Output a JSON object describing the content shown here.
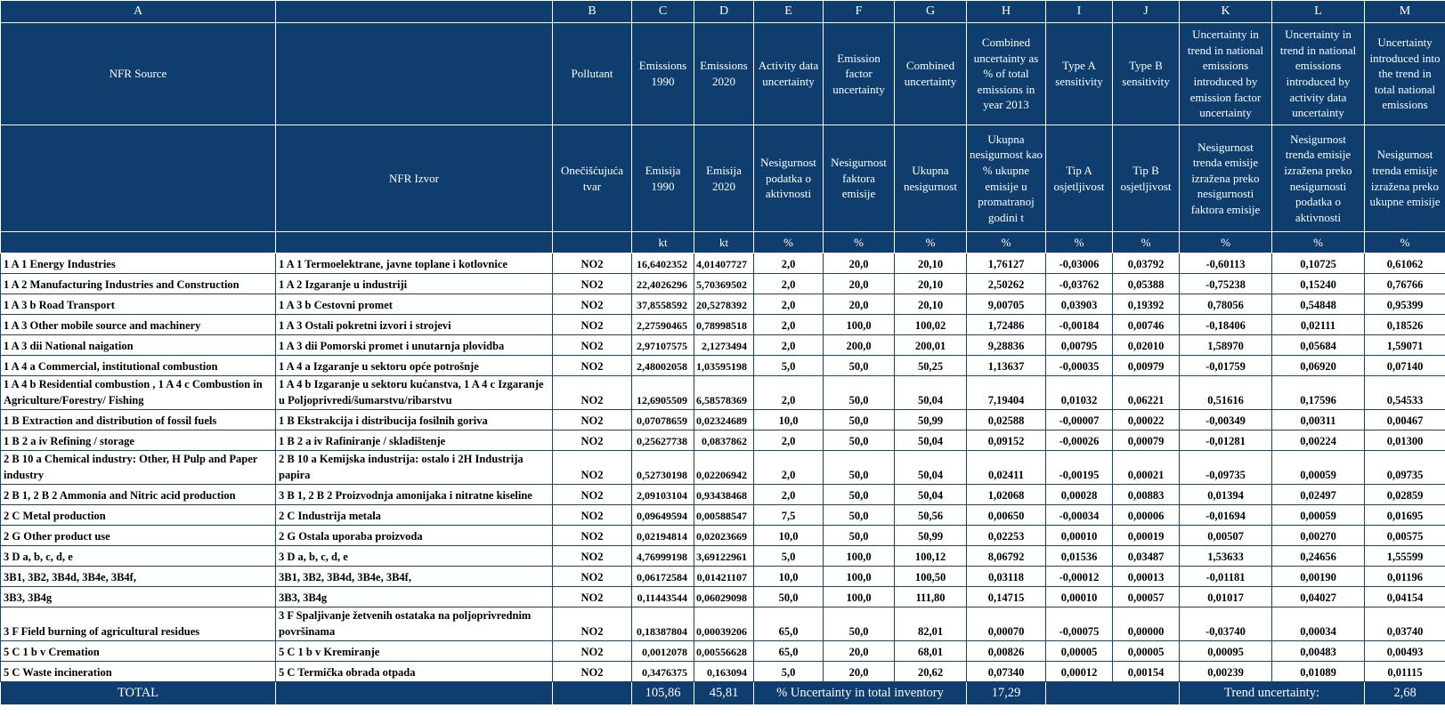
{
  "table": {
    "column_letters": [
      "A",
      "",
      "B",
      "C",
      "D",
      "E",
      "F",
      "G",
      "H",
      "I",
      "J",
      "K",
      "L",
      "M"
    ],
    "headers_en": [
      "NFR Source",
      "",
      "Pollutant",
      "Emissions 1990",
      "Emissions 2020",
      "Activity data uncertainty",
      "Emission factor uncertainty",
      "Combined uncertainty",
      "Combined uncertainty as % of total emissions in year 2013",
      "Type A sensitivity",
      "Type B sensitivity",
      "Uncertainty in trend in national emissions introduced by emission factor uncertainty",
      "Uncertainty in trend in national emissions introduced by activity data uncertainty",
      "Uncertainty introduced into the trend in total national emissions"
    ],
    "headers_hr": [
      "",
      "NFR Izvor",
      "Onečišćujuća tvar",
      "Emisija 1990",
      "Emisija 2020",
      "Nesigurnost podatka o aktivnosti",
      "Nesigurnost faktora emisije",
      "Ukupna nesigurnost",
      "Ukupna nesigurnost kao % ukupne emisije u promatranoj godini t",
      "Tip A osjetljivost",
      "Tip B osjetljivost",
      "Nesigurnost trenda emisije izražena preko nesigurnosti faktora emisije",
      "Nesigurnost trenda emisije izražena preko nesigurnosti podatka o aktivnosti",
      "Nesigurnost trenda emisije izražena preko ukupne emisije"
    ],
    "units": [
      "",
      "",
      "",
      "kt",
      "kt",
      "%",
      "%",
      "%",
      "%",
      "%",
      "%",
      "%",
      "%",
      "%"
    ],
    "rows": [
      [
        "1 A 1  Energy Industries",
        "1 A 1 Termoelektrane, javne toplane i kotlovnice",
        "NO2",
        "16,6402352",
        "4,01407727",
        "2,0",
        "20,0",
        "20,10",
        "1,76127",
        "-0,03006",
        "0,03792",
        "-0,60113",
        "0,10725",
        "0,61062"
      ],
      [
        "1 A 2  Manufacturing Industries and Construction",
        "1 A 2  Izgaranje u industriji",
        "NO2",
        "22,4026296",
        "5,70369502",
        "2,0",
        "20,0",
        "20,10",
        "2,50262",
        "-0,03762",
        "0,05388",
        "-0,75238",
        "0,15240",
        "0,76766"
      ],
      [
        "1 A 3 b Road Transport",
        "1 A 3 b Cestovni promet",
        "NO2",
        "37,8558592",
        "20,5278392",
        "2,0",
        "20,0",
        "20,10",
        "9,00705",
        "0,03903",
        "0,19392",
        "0,78056",
        "0,54848",
        "0,95399"
      ],
      [
        "1 A 3  Other mobile source and machinery",
        "1 A 3  Ostali pokretni izvori i strojevi",
        "NO2",
        "2,27590465",
        "0,78998518",
        "2,0",
        "100,0",
        "100,02",
        "1,72486",
        "-0,00184",
        "0,00746",
        "-0,18406",
        "0,02111",
        "0,18526"
      ],
      [
        "1 A 3 dii National naigation",
        "1 A 3 dii Pomorski promet i unutarnja plovidba",
        "NO2",
        "2,97107575",
        "2,1273494",
        "2,0",
        "200,0",
        "200,01",
        "9,28836",
        "0,00795",
        "0,02010",
        "1,58970",
        "0,05684",
        "1,59071"
      ],
      [
        "1 A 4 a Commercial, institutional  combustion",
        "1 A 4 a Izgaranje u sektoru opće potrošnje",
        "NO2",
        "2,48002058",
        "1,03595198",
        "5,0",
        "50,0",
        "50,25",
        "1,13637",
        "-0,00035",
        "0,00979",
        "-0,01759",
        "0,06920",
        "0,07140"
      ],
      [
        "1 A 4 b Residential combustion , 1 A 4 c  Combustion in Agriculture/Forestry/ Fishing",
        "1 A 4 b Izgaranje u sektoru kućanstva, 1 A 4 c  Izgaranje u Poljoprivredi/šumarstvu/ribarstvu",
        "NO2",
        "12,6905509",
        "6,58578369",
        "2,0",
        "50,0",
        "50,04",
        "7,19404",
        "0,01032",
        "0,06221",
        "0,51616",
        "0,17596",
        "0,54533"
      ],
      [
        "1 B  Extraction and distribution of fossil fuels",
        "1 B  Ekstrakcija i distribucija fosilnih goriva",
        "NO2",
        "0,07078659",
        "0,02324689",
        "10,0",
        "50,0",
        "50,99",
        "0,02588",
        "-0,00007",
        "0,00022",
        "-0,00349",
        "0,00311",
        "0,00467"
      ],
      [
        "1 B 2 a iv Refining / storage",
        "1 B 2 a iv Rafiniranje / skladištenje",
        "NO2",
        "0,25627738",
        "0,0837862",
        "2,0",
        "50,0",
        "50,04",
        "0,09152",
        "-0,00026",
        "0,00079",
        "-0,01281",
        "0,00224",
        "0,01300"
      ],
      [
        "2 B 10 a Chemical industry: Other, H Pulp and Paper industry",
        "2 B 10 a Kemijska industrija: ostalo i 2H Industrija papira",
        "NO2",
        "0,52730198",
        "0,02206942",
        "2,0",
        "50,0",
        "50,04",
        "0,02411",
        "-0,00195",
        "0,00021",
        "-0,09735",
        "0,00059",
        "0,09735"
      ],
      [
        "2 B 1, 2 B 2 Ammonia and Nitric acid production",
        "3 B 1, 2 B 2 Proizvodnja amonijaka i nitratne kiseline",
        "NO2",
        "2,09103104",
        "0,93438468",
        "2,0",
        "50,0",
        "50,04",
        "1,02068",
        "0,00028",
        "0,00883",
        "0,01394",
        "0,02497",
        "0,02859"
      ],
      [
        "2 C  Metal production",
        "2 C  Industrija metala",
        "NO2",
        "0,09649594",
        "0,00588547",
        "7,5",
        "50,0",
        "50,56",
        "0,00650",
        "-0,00034",
        "0,00006",
        "-0,01694",
        "0,00059",
        "0,01695"
      ],
      [
        "2 G Other product use",
        "2 G Ostala uporaba proizvoda",
        "NO2",
        "0,02194814",
        "0,02023669",
        "10,0",
        "50,0",
        "50,99",
        "0,02253",
        "0,00010",
        "0,00019",
        "0,00507",
        "0,00270",
        "0,00575"
      ],
      [
        "3 D a, b, c, d, e",
        "3 D a, b, c, d, e",
        "NO2",
        "4,76999198",
        "3,69122961",
        "5,0",
        "100,0",
        "100,12",
        "8,06792",
        "0,01536",
        "0,03487",
        "1,53633",
        "0,24656",
        "1,55599"
      ],
      [
        "3B1, 3B2, 3B4d, 3B4e, 3B4f,",
        "3B1, 3B2, 3B4d, 3B4e, 3B4f,",
        "NO2",
        "0,06172584",
        "0,01421107",
        "10,0",
        "100,0",
        "100,50",
        "0,03118",
        "-0,00012",
        "0,00013",
        "-0,01181",
        "0,00190",
        "0,01196"
      ],
      [
        "3B3, 3B4g",
        "3B3, 3B4g",
        "NO2",
        "0,11443544",
        "0,06029098",
        "50,0",
        "100,0",
        "111,80",
        "0,14715",
        "0,00010",
        "0,00057",
        "0,01017",
        "0,04027",
        "0,04154"
      ],
      [
        "3 F Field burning of agricultural residues",
        "3 F Spaljivanje žetvenih ostataka na poljoprivrednim površinama",
        "NO2",
        "0,18387804",
        "0,00039206",
        "65,0",
        "50,0",
        "82,01",
        "0,00070",
        "-0,00075",
        "0,00000",
        "-0,03740",
        "0,00034",
        "0,03740"
      ],
      [
        "5 C 1 b v  Cremation",
        "5 C 1 b v  Kremiranje",
        "NO2",
        "0,0012078",
        "0,00556628",
        "65,0",
        "20,0",
        "68,01",
        "0,00826",
        "0,00005",
        "0,00005",
        "0,00095",
        "0,00483",
        "0,00493"
      ],
      [
        "5 C Waste incineration",
        "5 C  Termička obrada otpada",
        "NO2",
        "0,3476375",
        "0,163094",
        "5,0",
        "20,0",
        "20,62",
        "0,07340",
        "0,00012",
        "0,00154",
        "0,00239",
        "0,01089",
        "0,01115"
      ]
    ],
    "total": {
      "label": "TOTAL",
      "emissions_1990": "105,86",
      "emissions_2020": "45,81",
      "inventory_uncertainty_label": "% Uncertainty in total inventory",
      "inventory_uncertainty_value": "17,29",
      "trend_uncertainty_label": "Trend uncertainty:",
      "trend_uncertainty_value": "2,68"
    }
  },
  "colors": {
    "header_background": "#0e3d6e",
    "header_text": "#ffffff",
    "grid_line": "#17466f",
    "data_text": "#000000",
    "data_background": "#ffffff"
  }
}
